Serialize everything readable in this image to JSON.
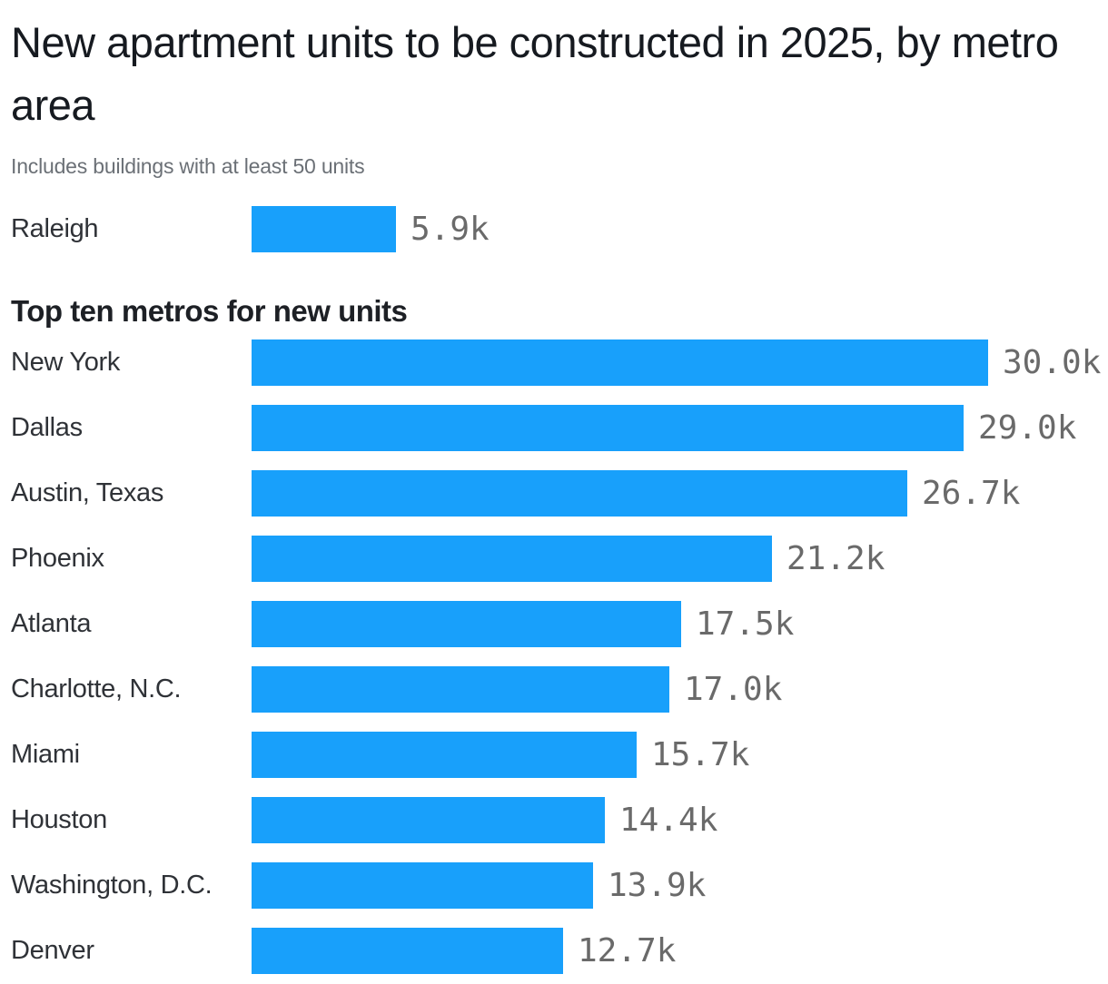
{
  "colors": {
    "bar": "#18A0FB",
    "title_text": "#161a20",
    "subtitle_text": "#6b7076",
    "section_header_text": "#1d2025",
    "category_label_text": "#2f3237",
    "value_label_text": "#6a6a6a",
    "background": "#ffffff"
  },
  "chart_data": {
    "type": "bar",
    "orientation": "horizontal",
    "title": "New apartment units to be constructed in 2025, by metro area",
    "subtitle": "Includes buildings with at least 50 units",
    "section_title": "Top ten metros for new units",
    "unit": "thousands of units",
    "xlim": [
      0,
      30
    ],
    "grid": false,
    "legend": false,
    "highlight": {
      "label": "Raleigh",
      "value": 5.9,
      "value_label": "5.9k"
    },
    "categories": [
      "New York",
      "Dallas",
      "Austin, Texas",
      "Phoenix",
      "Atlanta",
      "Charlotte, N.C.",
      "Miami",
      "Houston",
      "Washington, D.C.",
      "Denver"
    ],
    "values": [
      30.0,
      29.0,
      26.7,
      21.2,
      17.5,
      17.0,
      15.7,
      14.4,
      13.9,
      12.7
    ],
    "value_labels": [
      "30.0k",
      "29.0k",
      "26.7k",
      "21.2k",
      "17.5k",
      "17.0k",
      "15.7k",
      "14.4k",
      "13.9k",
      "12.7k"
    ]
  }
}
